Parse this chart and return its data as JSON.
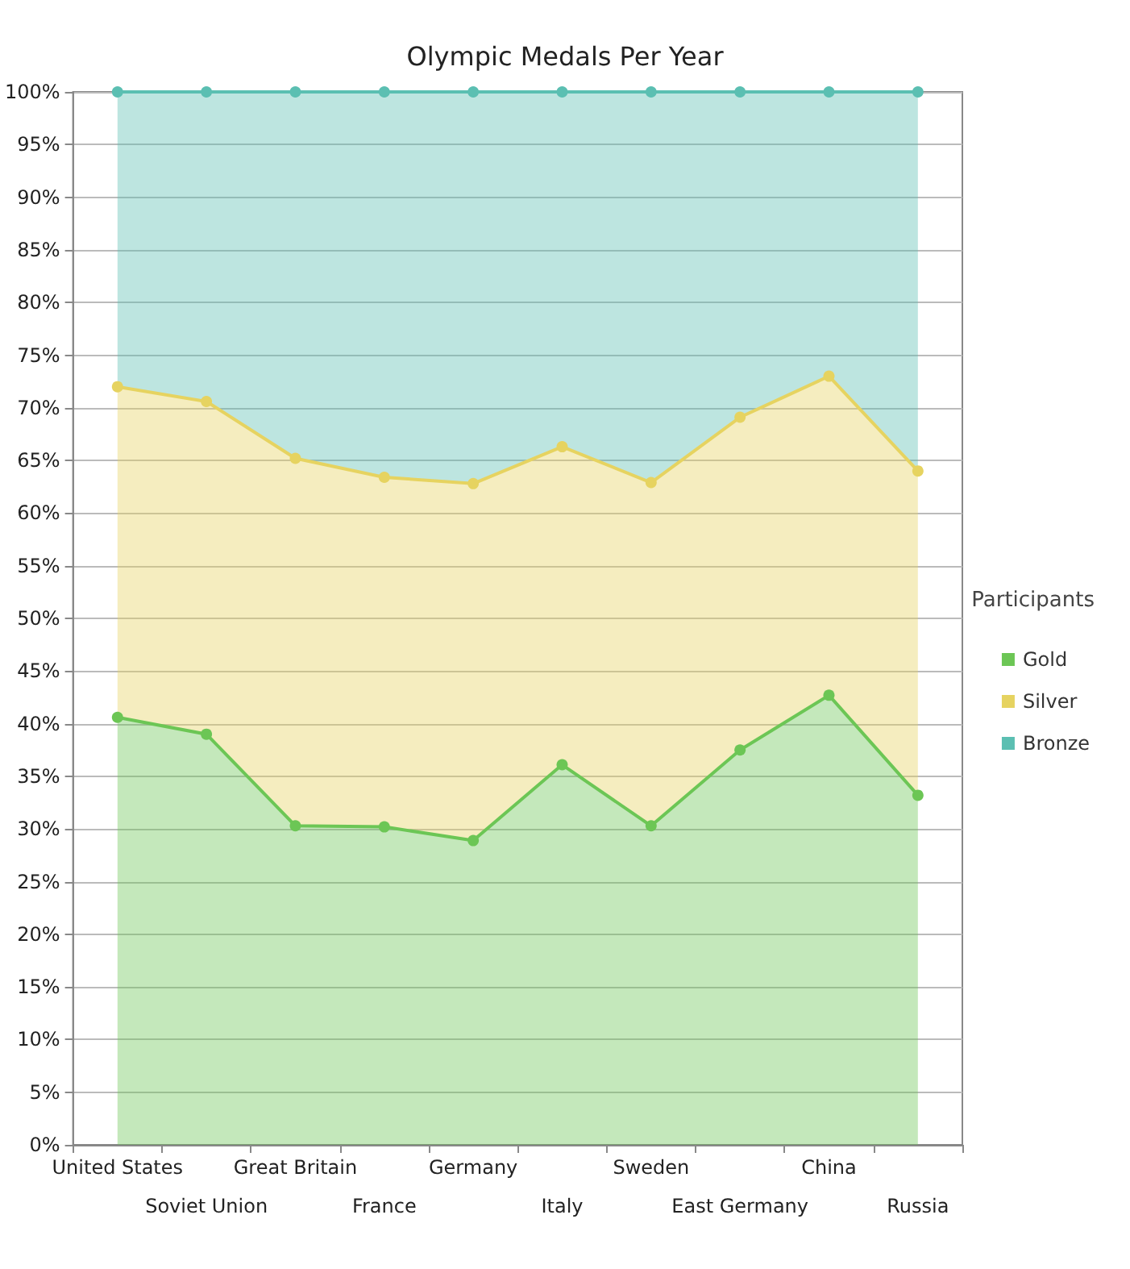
{
  "chart_data": {
    "type": "area",
    "title": "Olympic Medals Per Year",
    "legend_title": "Participants",
    "categories": [
      "United States",
      "Soviet Union",
      "Great Britain",
      "France",
      "Germany",
      "Italy",
      "Sweden",
      "East Germany",
      "China",
      "Russia"
    ],
    "stacked": true,
    "series": [
      {
        "name": "Gold",
        "color": "#6cc655",
        "values": [
          40.6,
          39.0,
          30.3,
          30.2,
          28.9,
          36.1,
          30.3,
          37.5,
          42.7,
          33.2
        ]
      },
      {
        "name": "Silver",
        "color": "#e6d360",
        "values": [
          31.4,
          31.6,
          34.9,
          33.2,
          33.9,
          30.2,
          32.6,
          31.6,
          30.3,
          30.8
        ]
      },
      {
        "name": "Bronze",
        "color": "#5bbfb2",
        "values": [
          28.0,
          29.4,
          34.8,
          36.6,
          37.2,
          33.7,
          37.1,
          30.9,
          27.0,
          36.0
        ]
      }
    ],
    "ylim": [
      0,
      100
    ],
    "yticks": [
      {
        "value": 0,
        "label": "0%"
      },
      {
        "value": 5,
        "label": "5%"
      },
      {
        "value": 10,
        "label": "10%"
      },
      {
        "value": 15,
        "label": "15%"
      },
      {
        "value": 20,
        "label": "20%"
      },
      {
        "value": 25,
        "label": "25%"
      },
      {
        "value": 30,
        "label": "30%"
      },
      {
        "value": 35,
        "label": "35%"
      },
      {
        "value": 40,
        "label": "40%"
      },
      {
        "value": 45,
        "label": "45%"
      },
      {
        "value": 50,
        "label": "50%"
      },
      {
        "value": 55,
        "label": "55%"
      },
      {
        "value": 60,
        "label": "60%"
      },
      {
        "value": 65,
        "label": "65%"
      },
      {
        "value": 70,
        "label": "70%"
      },
      {
        "value": 75,
        "label": "75%"
      },
      {
        "value": 80,
        "label": "80%"
      },
      {
        "value": 85,
        "label": "85%"
      },
      {
        "value": 90,
        "label": "90%"
      },
      {
        "value": 95,
        "label": "95%"
      },
      {
        "value": 100,
        "label": "100%"
      }
    ],
    "grid": "y",
    "legend": "right",
    "marker": "circle",
    "line_style": "solid"
  }
}
